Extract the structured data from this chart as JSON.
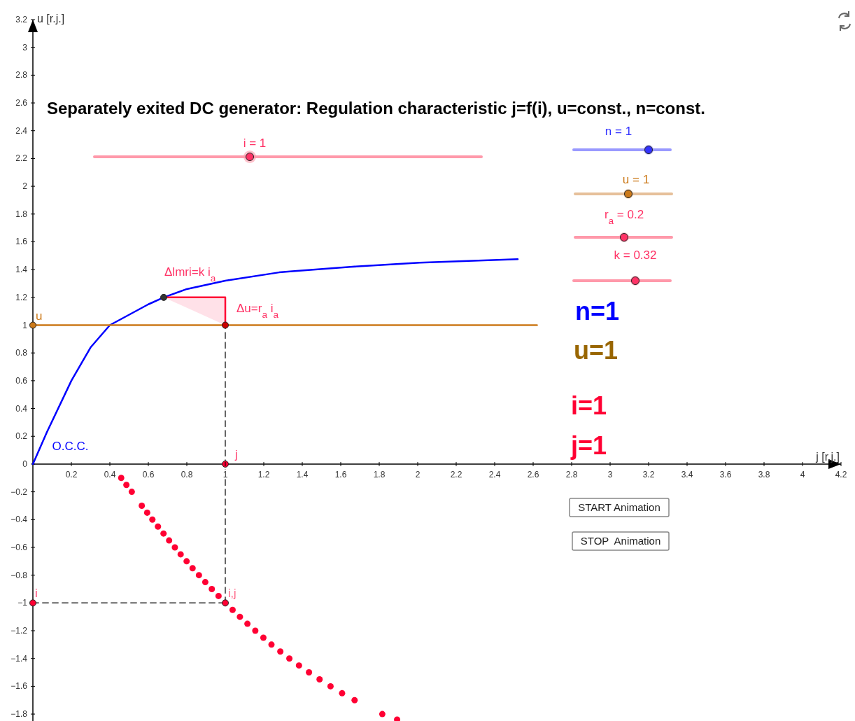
{
  "chart_data": {
    "type": "line",
    "title": "Separately exited DC generator: Regulation characteristic j=f(i), u=const., n=const.",
    "xlabel": "j [r.j.]",
    "ylabel": "u [r.j.]",
    "xlim": [
      0,
      4.2
    ],
    "ylim": [
      -1.85,
      3.2
    ],
    "xticks": [
      0.2,
      0.4,
      0.6,
      0.8,
      1,
      1.2,
      1.4,
      1.6,
      1.8,
      2,
      2.2,
      2.4,
      2.6,
      2.8,
      3,
      3.2,
      3.4,
      3.6,
      3.8,
      4,
      4.2
    ],
    "yticks": [
      {
        "value": -1.8,
        "label": "−1.8"
      },
      {
        "value": -1.6,
        "label": "−1.6"
      },
      {
        "value": -1.4,
        "label": "−1.4"
      },
      {
        "value": -1.2,
        "label": "−1.2"
      },
      {
        "value": -1,
        "label": "−1"
      },
      {
        "value": -0.8,
        "label": "−0.8"
      },
      {
        "value": -0.6,
        "label": "−0.6"
      },
      {
        "value": -0.4,
        "label": "−0.4"
      },
      {
        "value": -0.2,
        "label": "−0.2"
      },
      0,
      0.2,
      0.4,
      0.6,
      0.8,
      1,
      1.2,
      1.4,
      1.6,
      1.8,
      2,
      2.2,
      2.4,
      2.6,
      2.8,
      3,
      3.2
    ],
    "grid": false,
    "series": [
      {
        "name": "O.C.C.",
        "type": "line",
        "color": "#0000ff",
        "x": [
          0,
          0.073,
          0.2,
          0.3,
          0.4,
          0.6,
          0.68,
          0.8,
          1,
          1.28,
          1.36,
          1.65,
          2.01,
          2.52
        ],
        "values": [
          0,
          0.23,
          0.6,
          0.84,
          1,
          1.15,
          1.2,
          1.26,
          1.32,
          1.38,
          1.39,
          1.42,
          1.45,
          1.475
        ]
      },
      {
        "name": "u",
        "type": "line",
        "color": "#cc7a1a",
        "x": [
          0,
          2.62
        ],
        "values": [
          1,
          1
        ]
      },
      {
        "type": "line",
        "color": "#ff0033",
        "x": [
          0.68,
          1,
          1
        ],
        "values": [
          1.2,
          1.2,
          1
        ]
      },
      {
        "type": "line",
        "color": "#666666",
        "line_style": "dashed",
        "x": [
          1,
          1
        ],
        "values": [
          -1,
          1
        ]
      },
      {
        "type": "line",
        "color": "#666666",
        "line_style": "dashed",
        "x": [
          0,
          1
        ],
        "values": [
          -1,
          -1
        ]
      },
      {
        "type": "scatter",
        "color": "#ff0033",
        "marker": "circle",
        "x": [
          0.459,
          0.486,
          0.514,
          0.566,
          0.594,
          0.621,
          0.65,
          0.679,
          0.708,
          0.738,
          0.768,
          0.799,
          0.83,
          0.863,
          0.896,
          0.93,
          0.965,
          1.038,
          1.076,
          1.115,
          1.156,
          1.198,
          1.24,
          1.286,
          1.333,
          1.383,
          1.435,
          1.49,
          1.547,
          1.607,
          1.672,
          1.816,
          1.893
        ],
        "values": [
          -0.1,
          -0.15,
          -0.2,
          -0.3,
          -0.35,
          -0.4,
          -0.45,
          -0.5,
          -0.55,
          -0.6,
          -0.65,
          -0.7,
          -0.75,
          -0.8,
          -0.85,
          -0.9,
          -0.95,
          -1.05,
          -1.1,
          -1.15,
          -1.2,
          -1.25,
          -1.3,
          -1.35,
          -1.4,
          -1.45,
          -1.5,
          -1.55,
          -1.6,
          -1.65,
          -1.7,
          -1.8,
          -1.84
        ]
      },
      {
        "type": "scatter",
        "marker": "circle",
        "x": [
          0,
          1,
          0.68,
          1,
          0,
          1
        ],
        "values": [
          1,
          1,
          1.2,
          0,
          -1,
          -1
        ],
        "colors": [
          "#cc7a1a",
          "#cc0000",
          "#333333",
          "#ff0033",
          "#ff0033",
          "#ff0033"
        ]
      }
    ],
    "annotations": [
      "i = 1",
      "n = 1",
      "u = 1",
      "r$_{a}$ = 0.2",
      "k = 0.32",
      "Δlmri=k i$_{a}$",
      "Δu=r$_{a}$ i$_{a}$",
      "n=1",
      "u=1",
      "i=1",
      "j=1",
      "START Animation",
      "STOP  Animation",
      "j",
      "i",
      "i,j"
    ]
  }
}
